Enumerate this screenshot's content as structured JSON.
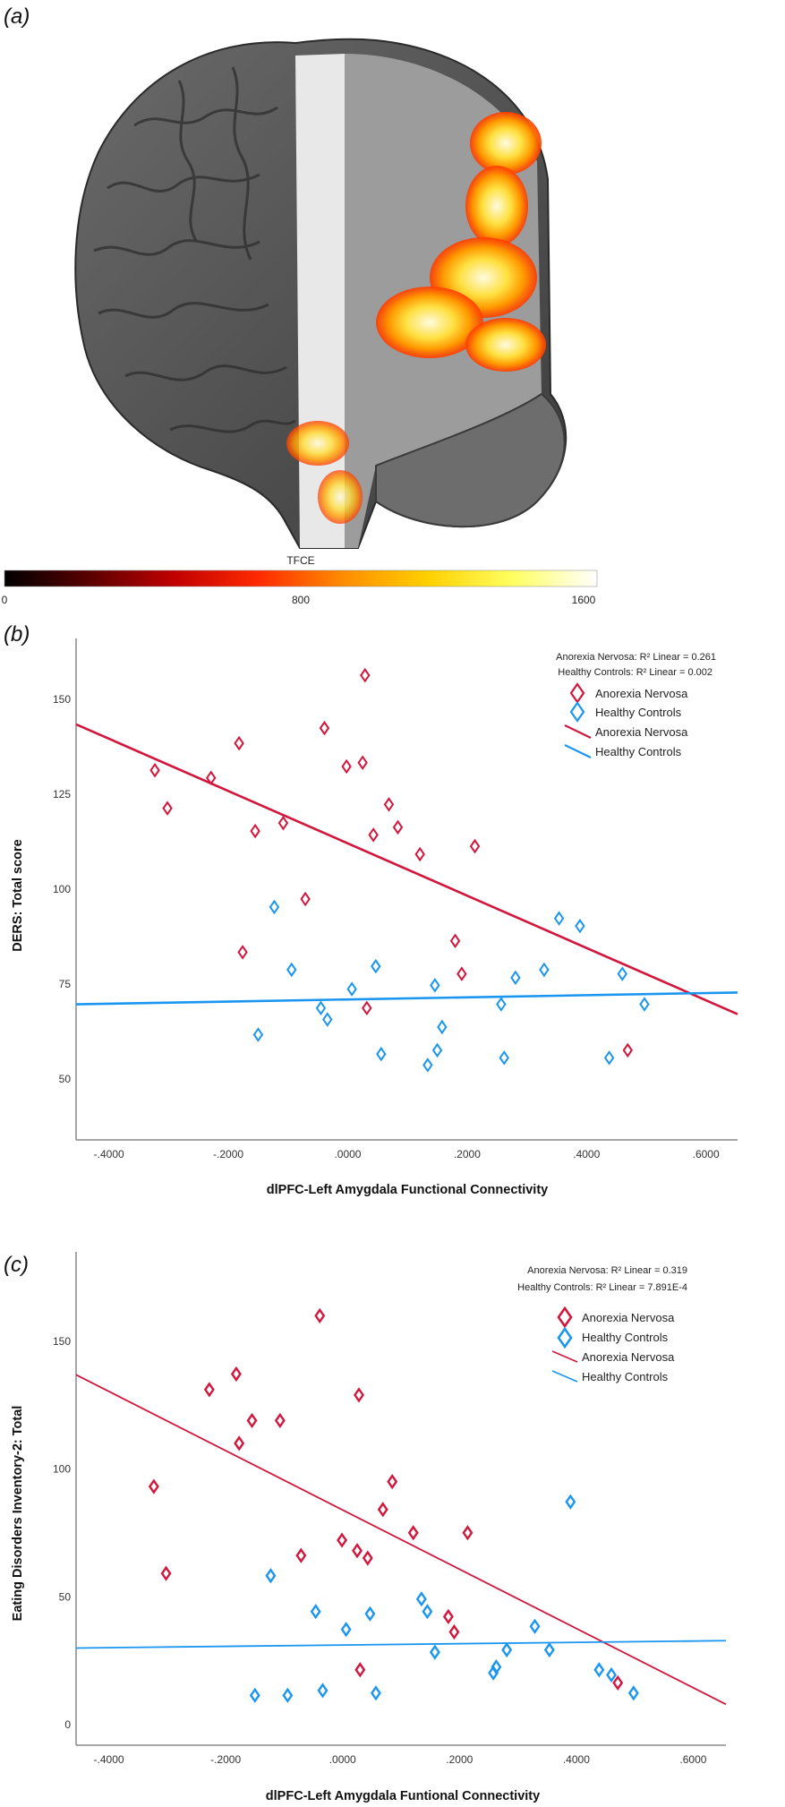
{
  "panel_a": {
    "label": "(a)",
    "colorbar": {
      "title": "TFCE",
      "ticks": [
        "0",
        "800",
        "1600"
      ],
      "min": 0,
      "max": 1600,
      "colors": [
        "#000000",
        "#5a0000",
        "#c00000",
        "#ff2a00",
        "#ff8c00",
        "#ffd000",
        "#ffff60",
        "#ffffff"
      ]
    },
    "overlay_colors": [
      "#ff3a00",
      "#ff9a00",
      "#ffe040",
      "#fffbe0"
    ]
  },
  "chart_data": [
    {
      "panel_label": "(b)",
      "type": "scatter",
      "xlabel": "dlPFC-Left Amygdala Functional Connectivity",
      "ylabel": "DERS: Total score",
      "xlim": [
        -0.455,
        0.653
      ],
      "ylim": [
        34,
        166
      ],
      "xticks": [
        -0.4,
        -0.2,
        0.0,
        0.2,
        0.4,
        0.6
      ],
      "xtick_labels": [
        "-.4000",
        "-.2000",
        ".0000",
        ".2000",
        ".4000",
        ".6000"
      ],
      "yticks": [
        50,
        75,
        100,
        125,
        150
      ],
      "ytick_labels": [
        "50",
        "75",
        "100",
        "125",
        "150"
      ],
      "grid": false,
      "legend_placement": "top-right",
      "annotations": [
        "Anorexia Nervosa: R² Linear = 0.261",
        "Healthy Controls: R² Linear = 0.002"
      ],
      "legend": [
        "Anorexia Nervosa",
        "Healthy Controls",
        "Anorexia Nervosa",
        "Healthy Controls"
      ],
      "series": [
        {
          "name": "Anorexia Nervosa",
          "color": "#d2163c",
          "marker": "diamond",
          "points": [
            [
              -0.323,
              131.3
            ],
            [
              -0.302,
              121.3
            ],
            [
              -0.229,
              129.3
            ],
            [
              -0.182,
              138.4
            ],
            [
              -0.155,
              115.3
            ],
            [
              -0.108,
              117.4
            ],
            [
              -0.071,
              97.4
            ],
            [
              -0.176,
              83.4
            ],
            [
              -0.039,
              142.4
            ],
            [
              -0.002,
              132.3
            ],
            [
              0.025,
              133.3
            ],
            [
              0.029,
              156.3
            ],
            [
              0.043,
              114.3
            ],
            [
              0.069,
              122.3
            ],
            [
              0.084,
              116.3
            ],
            [
              0.121,
              109.2
            ],
            [
              0.213,
              111.3
            ],
            [
              0.18,
              86.4
            ],
            [
              0.191,
              77.7
            ],
            [
              0.032,
              68.7
            ],
            [
              0.469,
              57.6
            ]
          ],
          "fit": [
            [
              -0.455,
              143.4
            ],
            [
              0.653,
              67.1
            ]
          ]
        },
        {
          "name": "Healthy Controls",
          "color": "#1a96f0",
          "marker": "diamond",
          "points": [
            [
              -0.123,
              95.3
            ],
            [
              0.354,
              92.3
            ],
            [
              0.389,
              90.3
            ],
            [
              -0.094,
              78.8
            ],
            [
              0.047,
              79.7
            ],
            [
              0.329,
              78.8
            ],
            [
              0.46,
              77.7
            ],
            [
              0.281,
              76.7
            ],
            [
              0.146,
              74.7
            ],
            [
              0.007,
              73.7
            ],
            [
              0.257,
              69.7
            ],
            [
              0.497,
              69.7
            ],
            [
              -0.045,
              68.7
            ],
            [
              -0.034,
              65.7
            ],
            [
              0.158,
              63.7
            ],
            [
              -0.15,
              61.7
            ],
            [
              0.056,
              56.6
            ],
            [
              0.15,
              57.6
            ],
            [
              0.262,
              55.6
            ],
            [
              0.134,
              53.7
            ],
            [
              0.438,
              55.6
            ]
          ],
          "fit": [
            [
              -0.455,
              69.7
            ],
            [
              0.653,
              72.8
            ]
          ]
        }
      ]
    },
    {
      "panel_label": "(c)",
      "type": "scatter",
      "xlabel": "dlPFC-Left Amygdala Funtional Connectivity",
      "ylabel": "Eating Disorders Inventory-2: Total",
      "xlim": [
        -0.456,
        0.656
      ],
      "ylim": [
        -8,
        185
      ],
      "xticks": [
        -0.4,
        -0.2,
        0.0,
        0.2,
        0.4,
        0.6
      ],
      "xtick_labels": [
        "-.4000",
        "-.2000",
        ".0000",
        ".2000",
        ".4000",
        ".6000"
      ],
      "yticks": [
        0,
        50,
        100,
        150
      ],
      "ytick_labels": [
        "0",
        "50",
        "100",
        "150"
      ],
      "grid": false,
      "legend_placement": "top-right",
      "annotations": [
        "Anorexia Nervosa: R² Linear = 0.319",
        "Healthy Controls: R² Linear = 7.891E-4"
      ],
      "legend": [
        "Anorexia Nervosa",
        "Healthy Controls",
        "Anorexia Nervosa",
        "Healthy Controls"
      ],
      "series": [
        {
          "name": "Anorexia Nervosa",
          "color": "#d2163c",
          "marker": "diamond",
          "points": [
            [
              -0.039,
              160.0
            ],
            [
              -0.182,
              137.2
            ],
            [
              -0.228,
              131.1
            ],
            [
              0.028,
              129.0
            ],
            [
              -0.155,
              119.0
            ],
            [
              -0.107,
              119.0
            ],
            [
              -0.177,
              110.1
            ],
            [
              -0.323,
              93.2
            ],
            [
              0.085,
              95.1
            ],
            [
              0.069,
              84.2
            ],
            [
              0.121,
              75.1
            ],
            [
              0.214,
              75.1
            ],
            [
              -0.001,
              72.2
            ],
            [
              0.025,
              68.1
            ],
            [
              0.043,
              65.2
            ],
            [
              -0.071,
              66.2
            ],
            [
              -0.302,
              59.2
            ],
            [
              0.181,
              42.3
            ],
            [
              0.191,
              36.3
            ],
            [
              0.03,
              21.5
            ],
            [
              0.471,
              16.4
            ]
          ],
          "fit": [
            [
              -0.456,
              136.9
            ],
            [
              0.656,
              8.0
            ]
          ]
        },
        {
          "name": "Healthy Controls",
          "color": "#1a96f0",
          "marker": "diamond",
          "points": [
            [
              0.39,
              87.2
            ],
            [
              -0.123,
              58.3
            ],
            [
              0.135,
              49.2
            ],
            [
              0.145,
              44.3
            ],
            [
              -0.046,
              44.3
            ],
            [
              0.047,
              43.4
            ],
            [
              0.006,
              37.3
            ],
            [
              0.329,
              38.5
            ],
            [
              0.158,
              28.4
            ],
            [
              0.281,
              29.3
            ],
            [
              0.354,
              29.3
            ],
            [
              0.263,
              22.6
            ],
            [
              0.258,
              20.3
            ],
            [
              0.439,
              21.5
            ],
            [
              0.46,
              19.5
            ],
            [
              0.498,
              12.4
            ],
            [
              -0.034,
              13.4
            ],
            [
              0.057,
              12.4
            ],
            [
              -0.15,
              11.5
            ],
            [
              -0.094,
              11.5
            ]
          ],
          "fit": [
            [
              -0.456,
              30.0
            ],
            [
              0.656,
              32.9
            ]
          ]
        }
      ]
    }
  ]
}
